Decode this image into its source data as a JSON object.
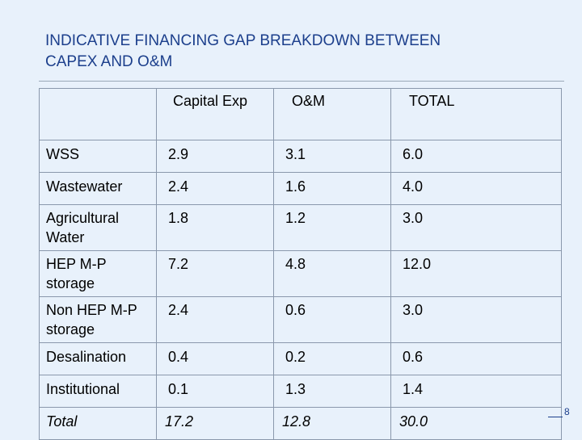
{
  "slide": {
    "title_line1": "INDICATIVE FINANCING GAP BREAKDOWN BETWEEN",
    "title_line2": "CAPEX AND O&M",
    "page_number": "8",
    "colors": {
      "title": "#1c3f8c",
      "background": "#e8f1fb",
      "border": "#8a98ac"
    }
  },
  "table": {
    "headers": [
      "",
      "Capital Exp",
      "O&M",
      "TOTAL"
    ],
    "rows": [
      [
        "WSS",
        "2.9",
        "3.1",
        "6.0"
      ],
      [
        "Wastewater",
        "2.4",
        "1.6",
        "4.0"
      ],
      [
        "Agricultural Water",
        "1.8",
        "1.2",
        "3.0"
      ],
      [
        "HEP M-P storage",
        "7.2",
        "4.8",
        "12.0"
      ],
      [
        "Non HEP M-P storage",
        "2.4",
        "0.6",
        "3.0"
      ],
      [
        "Desalination",
        "0.4",
        "0.2",
        "0.6"
      ],
      [
        "Institutional",
        "0.1",
        "1.3",
        "1.4"
      ]
    ],
    "total_row": [
      "Total",
      "17.2",
      "12.8",
      "30.0"
    ]
  }
}
